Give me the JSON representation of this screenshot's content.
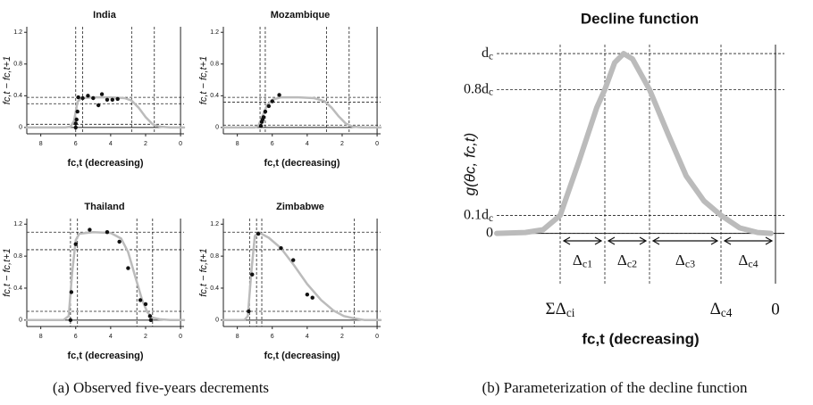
{
  "chart_data": [
    {
      "type": "scatter",
      "title": "India",
      "x_label": "fc,t (decreasing)",
      "y_label": "fc,t − fc,t+1",
      "xlim": [
        8.8,
        -0.2
      ],
      "ylim": [
        -0.08,
        1.27
      ],
      "xticks": [
        8,
        6,
        4,
        2,
        0
      ],
      "yticks": [
        0,
        0.4,
        0.8,
        1.2
      ],
      "vlines": [
        6.0,
        5.6,
        2.8,
        1.5
      ],
      "hlines": [
        0.38,
        0.3,
        0.04
      ],
      "points": {
        "color": "#111111",
        "x": [
          6.0,
          6.0,
          5.95,
          5.9,
          5.85,
          5.6,
          5.3,
          5.0,
          4.7,
          4.5,
          4.2,
          3.9,
          3.6
        ],
        "y": [
          0.0,
          0.05,
          0.1,
          0.2,
          0.38,
          0.37,
          0.4,
          0.37,
          0.28,
          0.42,
          0.35,
          0.35,
          0.36
        ]
      },
      "curve": {
        "color": "#bbbbbb",
        "x": [
          8.8,
          6.6,
          6.3,
          6.1,
          6.0,
          5.9,
          5.7,
          5.0,
          4.0,
          3.2,
          2.8,
          2.4,
          2.0,
          1.6,
          1.2,
          0.6,
          -0.2
        ],
        "y": [
          0,
          0,
          0.01,
          0.08,
          0.2,
          0.32,
          0.37,
          0.38,
          0.38,
          0.37,
          0.34,
          0.25,
          0.13,
          0.04,
          0.01,
          0,
          0
        ]
      }
    },
    {
      "type": "scatter",
      "title": "Mozambique",
      "x_label": "fc,t (decreasing)",
      "y_label": "fc,t − fc,t+1",
      "xlim": [
        8.8,
        -0.2
      ],
      "ylim": [
        -0.08,
        1.27
      ],
      "xticks": [
        8,
        6,
        4,
        2,
        0
      ],
      "yticks": [
        0,
        0.4,
        0.8,
        1.2
      ],
      "vlines": [
        6.7,
        6.4,
        2.9,
        1.6
      ],
      "hlines": [
        0.38,
        0.32,
        0.03
      ],
      "points": {
        "color": "#111111",
        "x": [
          6.65,
          6.6,
          6.55,
          6.5,
          6.4,
          6.2,
          6.0,
          5.6
        ],
        "y": [
          0.02,
          0.07,
          0.1,
          0.13,
          0.2,
          0.27,
          0.33,
          0.41
        ]
      },
      "curve": {
        "color": "#bbbbbb",
        "x": [
          8.8,
          7.0,
          6.8,
          6.6,
          6.3,
          6.0,
          5.5,
          4.5,
          3.6,
          3.0,
          2.6,
          2.2,
          1.8,
          1.4,
          0.8,
          -0.2
        ],
        "y": [
          0,
          0,
          0.02,
          0.12,
          0.28,
          0.35,
          0.38,
          0.38,
          0.37,
          0.33,
          0.25,
          0.14,
          0.05,
          0.01,
          0,
          0
        ]
      }
    },
    {
      "type": "scatter",
      "title": "Thailand",
      "x_label": "fc,t (decreasing)",
      "y_label": "fc,t − fc,t+1",
      "xlim": [
        8.8,
        -0.2
      ],
      "ylim": [
        -0.08,
        1.27
      ],
      "xticks": [
        8,
        6,
        4,
        2,
        0
      ],
      "yticks": [
        0,
        0.4,
        0.8,
        1.2
      ],
      "vlines": [
        6.3,
        5.9,
        2.5,
        1.6
      ],
      "hlines": [
        1.1,
        0.88,
        0.11
      ],
      "points": {
        "color": "#111111",
        "x": [
          6.3,
          6.25,
          6.0,
          5.2,
          4.2,
          3.5,
          3.0,
          2.3,
          2.0,
          1.75,
          1.7
        ],
        "y": [
          0.0,
          0.35,
          0.95,
          1.13,
          1.1,
          0.98,
          0.65,
          0.25,
          0.2,
          0.05,
          0.0
        ]
      },
      "curve": {
        "color": "#bbbbbb",
        "x": [
          8.8,
          6.7,
          6.4,
          6.2,
          6.0,
          5.8,
          5.0,
          4.0,
          3.4,
          3.0,
          2.6,
          2.2,
          1.9,
          1.6,
          1.2,
          0.6,
          -0.2
        ],
        "y": [
          0,
          0,
          0.05,
          0.6,
          1.0,
          1.08,
          1.1,
          1.09,
          1.02,
          0.85,
          0.55,
          0.25,
          0.1,
          0.03,
          0.01,
          0,
          0
        ]
      }
    },
    {
      "type": "scatter",
      "title": "Zimbabwe",
      "x_label": "fc,t (decreasing)",
      "y_label": "fc,t − fc,t+1",
      "xlim": [
        8.8,
        -0.2
      ],
      "ylim": [
        -0.08,
        1.27
      ],
      "xticks": [
        8,
        6,
        4,
        2,
        0
      ],
      "yticks": [
        0,
        0.4,
        0.8,
        1.2
      ],
      "vlines": [
        7.3,
        6.9,
        6.6,
        1.3
      ],
      "hlines": [
        1.1,
        0.88,
        0.11
      ],
      "points": {
        "color": "#111111",
        "x": [
          7.35,
          7.15,
          6.8,
          5.5,
          4.8,
          4.0,
          3.7
        ],
        "y": [
          0.11,
          0.57,
          1.08,
          0.9,
          0.75,
          0.32,
          0.28
        ]
      },
      "curve": {
        "color": "#bbbbbb",
        "x": [
          8.8,
          7.6,
          7.4,
          7.2,
          7.0,
          6.8,
          6.2,
          5.5,
          4.8,
          4.0,
          3.2,
          2.5,
          1.9,
          1.3,
          0.7,
          -0.2
        ],
        "y": [
          0,
          0,
          0.05,
          0.6,
          1.05,
          1.1,
          1.03,
          0.9,
          0.7,
          0.45,
          0.25,
          0.12,
          0.05,
          0.02,
          0,
          0
        ]
      }
    },
    {
      "type": "line",
      "title": "Decline function",
      "x_label": "fc,t (decreasing)",
      "y_label": "g(θc, fc,t)",
      "xlim": [
        31.2,
        -1.0
      ],
      "ylim": [
        -0.28,
        1.05
      ],
      "xticks": [
        {
          "value": 24.1,
          "label": "ΣΔci"
        },
        {
          "value": 6.1,
          "label": "Δc4"
        },
        0
      ],
      "yticks": [
        {
          "value": 1,
          "label": "dc"
        },
        {
          "value": 0.8,
          "label": "0.8dc"
        },
        {
          "value": 0.1,
          "label": "0.1dc"
        },
        0
      ],
      "vlines": [
        24.1,
        19.1,
        14.1,
        6.1
      ],
      "annotations": [
        "Δc1",
        "Δc2",
        "Δc3",
        "Δc4"
      ],
      "curve": {
        "color": "#bbbbbb",
        "x": [
          31.2,
          28,
          26,
          24.1,
          22,
          20,
          19.1,
          18,
          17,
          16,
          14.1,
          12,
          10,
          8,
          6.1,
          4,
          2,
          0.5
        ],
        "y": [
          0,
          0.005,
          0.02,
          0.1,
          0.4,
          0.7,
          0.8,
          0.95,
          1.0,
          0.97,
          0.8,
          0.55,
          0.32,
          0.18,
          0.1,
          0.03,
          0.005,
          0
        ]
      }
    }
  ],
  "captions": [
    "(a) Observed five-years decrements",
    "(b) Parameterization of the decline function"
  ]
}
